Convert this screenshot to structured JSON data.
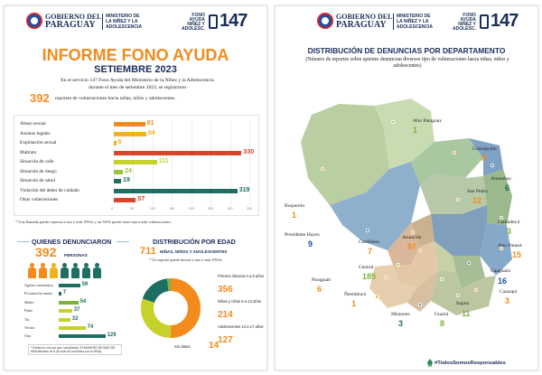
{
  "header": {
    "gob_line1": "GOBIERNO DEL",
    "gob_line2": "PARAGUAY",
    "ministry": [
      "MINISTERIO DE",
      "LA NIÑEZ Y LA",
      "ADOLESCENCIA"
    ],
    "fono": [
      "FONO",
      "AYUDA",
      "NIÑEZ Y",
      "ADOLESC."
    ],
    "number": "147"
  },
  "left": {
    "title": "INFORME FONO AYUDA",
    "subtitle": "SETIEMBRE 2023",
    "intro_line1": "En el servicio 147 Fono Ayuda del Ministerio de la Niñez y la Adolescencia",
    "intro_line2": "durante el mes de setiembre 2023, se registraron",
    "total": "392",
    "intro_line3": "reportes de vulneraciones hacia niñas, niños y adolescentes.",
    "footnote": "* Una llamada puede reportar a uno o más NNAs y un NNA puede tener una o más vulneraciones.",
    "quienes": {
      "title": "QUIENES DENUNCIARON",
      "total": "392",
      "unit": "PERSONAS",
      "note": "* Existe un con ser que una (llama). El NÚMERO DE MÁS DE NNA llamado es 5 (el cual se comunica con el NNA)",
      "colors": [
        "#f28b1c",
        "#f28b1c",
        "#f2b21c",
        "#1f6e63",
        "#1f6e63",
        "#1f6e63",
        "#1f6e63"
      ]
    },
    "edad": {
      "title": "DISTRIBUCIÓN POR EDAD",
      "total": "711",
      "unit": "NIÑAS, NIÑOS Y ADOLESCENTES",
      "note": "* Un reporte puede incluir a uno o más NNAs"
    }
  },
  "chart_data": [
    {
      "type": "bar",
      "categories": [
        "Abuso sexual",
        "Asuntos legales",
        "Explotación sexual",
        "Maltrato",
        "Situación de calle",
        "Situación de riesgo",
        "Situación de salud",
        "Violación del deber de cuidado",
        "Otras vulneraciones"
      ],
      "values": [
        81,
        84,
        6,
        330,
        111,
        24,
        19,
        319,
        57
      ],
      "colors": [
        "#f28b1c",
        "#f2b21c",
        "#f2b21c",
        "#d9452b",
        "#c6d22b",
        "#9bc23b",
        "#1f6e63",
        "#1f6e63",
        "#d9452b"
      ],
      "xlim": [
        0,
        350
      ],
      "xticks": [
        "0",
        "50",
        "100",
        "150",
        "200",
        "250",
        "300",
        "350"
      ]
    },
    {
      "type": "bar",
      "categories": [
        "Agente comunitario",
        "El mismo/la misma",
        "Madre",
        "Padre",
        "Tío",
        "Vecina",
        "Otra"
      ],
      "values": [
        59,
        7,
        54,
        37,
        32,
        74,
        129
      ],
      "colors": [
        "#1f6e63",
        "#1f6e63",
        "#7fb23b",
        "#c6d22b",
        "#c6d22b",
        "#c6d22b",
        "#1f6e63"
      ],
      "xlim": [
        0,
        140
      ]
    },
    {
      "type": "pie",
      "labels": [
        "Primera infancia 0 a 8 años",
        "Niñas y niños 9 a 13 años",
        "Adolescentes 14 a 17 años",
        "Sin datos"
      ],
      "values": [
        356,
        214,
        127,
        14
      ],
      "colors": [
        "#f28b1c",
        "#c6d22b",
        "#1f6e63",
        "#7fb23b"
      ]
    }
  ],
  "right": {
    "title": "DISTRIBUCIÓN DE DENUNCIAS POR DEPARTAMENTO",
    "subtitle": "(Número de reportes sobre quienes denuncian diversos tipo de vulneraciones hacia niñas, niños y adolescentes)",
    "hashtag": "#TodosSomosResponsables",
    "departments": [
      {
        "name": "Alto Paraguay",
        "value": "1",
        "color": "#7fb23b"
      },
      {
        "name": "Boquerón",
        "value": "1",
        "color": "#f28b1c"
      },
      {
        "name": "Concepción",
        "value": "9",
        "color": "#f28b1c"
      },
      {
        "name": "Amambay",
        "value": "6",
        "color": "#1f6e63"
      },
      {
        "name": "San Pedro",
        "value": "12",
        "color": "#f28b1c"
      },
      {
        "name": "Canindeyú",
        "value": "3",
        "color": "#7fb23b"
      },
      {
        "name": "Presidente Hayes",
        "value": "9",
        "color": "#1f4f9e"
      },
      {
        "name": "Cordillera",
        "value": "7",
        "color": "#f28b1c"
      },
      {
        "name": "Asunción",
        "value": "97",
        "color": "#f28b1c"
      },
      {
        "name": "Alto Paraná",
        "value": "15",
        "color": "#f28b1c"
      },
      {
        "name": "Central",
        "value": "185",
        "color": "#7fb23b"
      },
      {
        "name": "Paraguarí",
        "value": "6",
        "color": "#f28b1c"
      },
      {
        "name": "Caaguazú",
        "value": "16",
        "color": "#1f4f9e"
      },
      {
        "name": "Caazapá",
        "value": "3",
        "color": "#f28b1c"
      },
      {
        "name": "Ñeembucú",
        "value": "1",
        "color": "#f28b1c"
      },
      {
        "name": "Itapúa",
        "value": "11",
        "color": "#7fb23b"
      },
      {
        "name": "Misiones",
        "value": "3",
        "color": "#1f6e63"
      },
      {
        "name": "Guairá",
        "value": "8",
        "color": "#7fb23b"
      }
    ]
  }
}
